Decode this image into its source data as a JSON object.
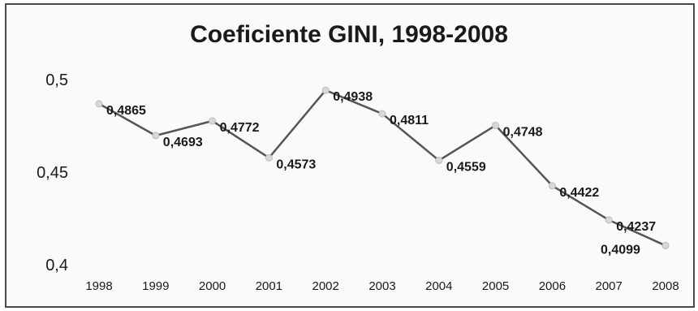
{
  "chart_data": {
    "type": "line",
    "title": "Coeficiente GINI, 1998-2008",
    "xlabel": "",
    "ylabel": "",
    "categories": [
      "1998",
      "1999",
      "2000",
      "2001",
      "2002",
      "2003",
      "2004",
      "2005",
      "2006",
      "2007",
      "2008"
    ],
    "series": [
      {
        "values": [
          0.4865,
          0.4693,
          0.4772,
          0.4573,
          0.4938,
          0.4811,
          0.4559,
          0.4748,
          0.4422,
          0.4237,
          0.4099
        ]
      }
    ],
    "data_labels": [
      "0,4865",
      "0,4693",
      "0,4772",
      "0,4573",
      "0,4938",
      "0,4811",
      "0,4559",
      "0,4748",
      "0,4422",
      "0,4237",
      "0,4099"
    ],
    "ylim": [
      0.4,
      0.5
    ],
    "yticks": [
      0.4,
      0.45,
      0.5
    ],
    "ytick_labels": [
      "0,4",
      "0,45",
      "0,5"
    ],
    "grid": false,
    "legend": "none",
    "colors": {
      "line": "#555555",
      "marker": "#d8d8d8",
      "frame": "#4a4a4a",
      "background": "#fafafa"
    }
  }
}
